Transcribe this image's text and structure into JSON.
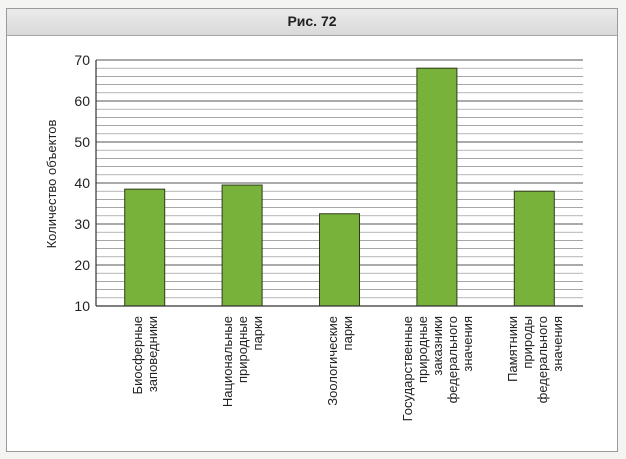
{
  "figure_title": "Рис. 72",
  "chart_data": {
    "type": "bar",
    "ylabel": "Количество объектов",
    "xlabel": "",
    "ylim": [
      10,
      70
    ],
    "yticks": [
      10,
      20,
      30,
      40,
      50,
      60,
      70
    ],
    "grid": true,
    "color": "#79b23b",
    "categories": [
      [
        "Биосферные",
        "заповедники"
      ],
      [
        "Национальные",
        "природные",
        "парки"
      ],
      [
        "Зоологические",
        "парки"
      ],
      [
        "Государственные",
        "природные",
        "заказники",
        "федерального",
        "значения"
      ],
      [
        "Памятники",
        "природы",
        "федерального",
        "значения"
      ]
    ],
    "values": [
      38.5,
      39.5,
      32.5,
      68,
      38
    ]
  }
}
